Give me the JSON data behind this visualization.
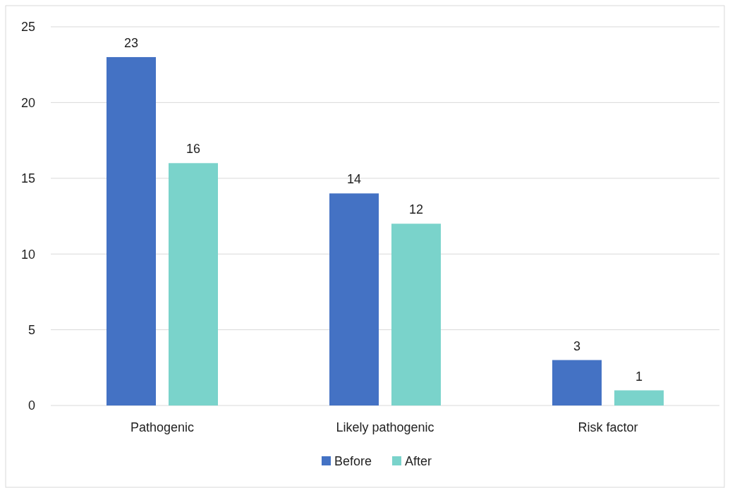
{
  "chart_data": {
    "type": "bar",
    "categories": [
      "Pathogenic",
      "Likely pathogenic",
      "Risk factor"
    ],
    "series": [
      {
        "name": "Before",
        "color": "#4472c4",
        "values": [
          23,
          14,
          3
        ]
      },
      {
        "name": "After",
        "color": "#7ad3cb",
        "values": [
          16,
          12,
          1
        ]
      }
    ],
    "ylim": [
      0,
      25
    ],
    "yticks": [
      0,
      5,
      10,
      15,
      20,
      25
    ],
    "grid": "y",
    "legend": "bottom",
    "data_labels": true
  }
}
